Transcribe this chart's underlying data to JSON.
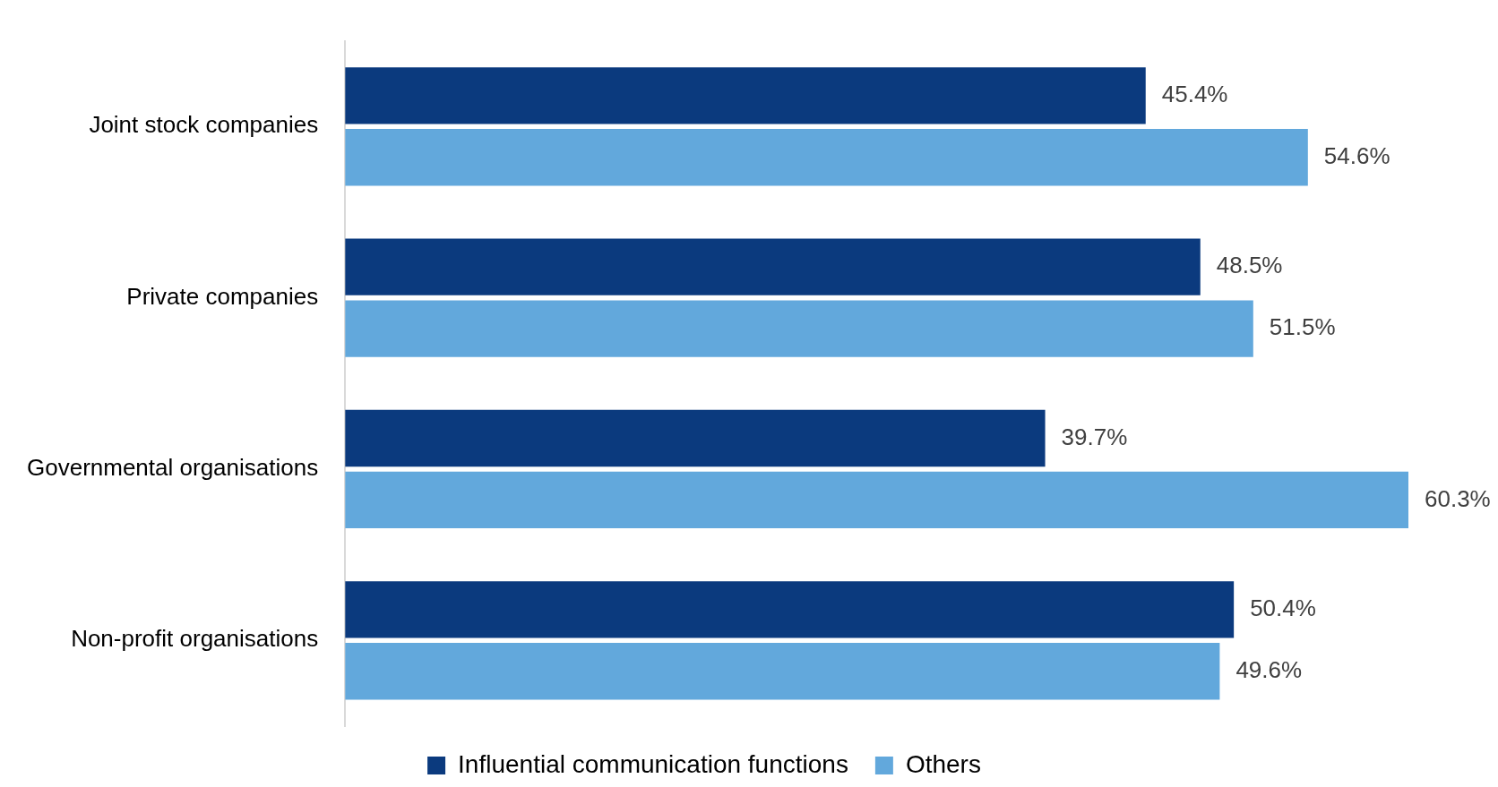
{
  "chart_data": {
    "type": "bar",
    "orientation": "horizontal",
    "categories": [
      "Joint stock companies",
      "Private companies",
      "Governmental organisations",
      "Non-profit organisations"
    ],
    "series": [
      {
        "name": "Influential communication functions",
        "color": "#0b3a7e",
        "values": [
          45.4,
          48.5,
          39.7,
          50.4
        ],
        "value_labels": [
          "45.4%",
          "48.5%",
          "39.7%",
          "50.4%"
        ]
      },
      {
        "name": "Others",
        "color": "#62a8dc",
        "values": [
          54.6,
          51.5,
          60.3,
          49.6
        ],
        "value_labels": [
          "54.6%",
          "51.5%",
          "60.3%",
          "49.6%"
        ]
      }
    ],
    "legend": "bottom",
    "grid": false,
    "tick_labels": "y"
  }
}
